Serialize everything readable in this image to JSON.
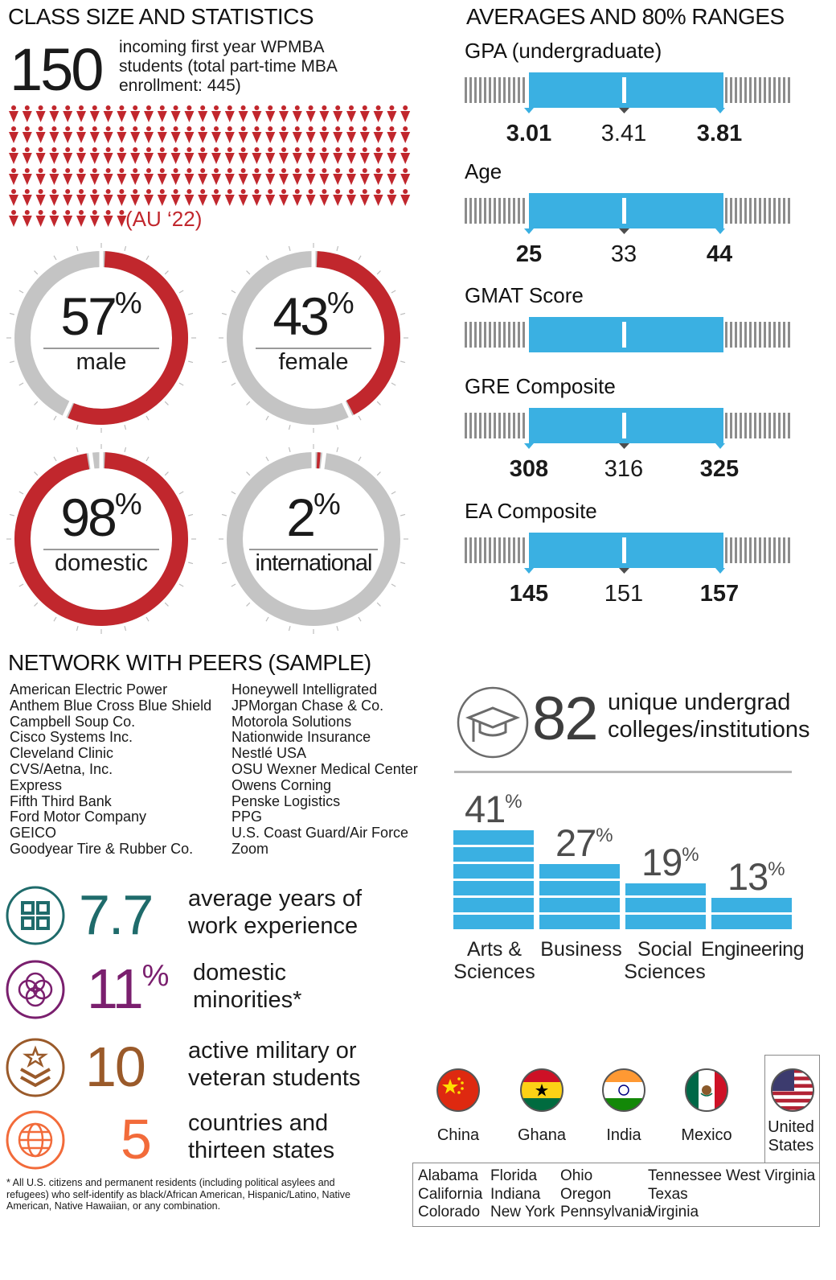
{
  "class_section": {
    "heading": "CLASS SIZE AND STATISTICS",
    "incoming_number": "150",
    "incoming_text": [
      "incoming first year WPMBA",
      "students (total part-time MBA",
      "enrollment: 445)"
    ],
    "au_label": "(AU ‘22)"
  },
  "donuts": [
    {
      "value": "57",
      "pct": "%",
      "label": "male",
      "fraction": 0.57,
      "fill": "red"
    },
    {
      "value": "43",
      "pct": "%",
      "label": "female",
      "fraction": 0.43,
      "fill": "red"
    },
    {
      "value": "98",
      "pct": "%",
      "label": "domestic",
      "fraction": 0.98,
      "fill": "red"
    },
    {
      "value": "2",
      "pct": "%",
      "label": "international",
      "fraction": 0.02,
      "fill": "red"
    }
  ],
  "averages": {
    "heading": "AVERAGES AND 80% RANGES",
    "metrics": [
      {
        "title": "GPA (undergraduate)",
        "low": "3.01",
        "avg": "3.41",
        "high": "3.81"
      },
      {
        "title": "Age",
        "low": "25",
        "avg": "33",
        "high": "44"
      },
      {
        "title": "GMAT Score",
        "low": "",
        "avg": "",
        "high": ""
      },
      {
        "title": "GRE Composite",
        "low": "308",
        "avg": "316",
        "high": "325"
      },
      {
        "title": "EA Composite",
        "low": "145",
        "avg": "151",
        "high": "157"
      }
    ]
  },
  "network": {
    "heading": "NETWORK WITH PEERS (SAMPLE)",
    "col1": [
      "American Electric Power",
      "Anthem Blue Cross Blue Shield",
      "Campbell Soup Co.",
      "Cisco Systems Inc.",
      "Cleveland Clinic",
      "CVS/Aetna, Inc.",
      "Express",
      "Fifth Third Bank",
      "Ford Motor Company",
      "GEICO",
      "Goodyear Tire & Rubber Co."
    ],
    "col2": [
      "Honeywell Intelligrated",
      "JPMorgan Chase & Co.",
      "Motorola Solutions",
      "Nationwide Insurance",
      "Nestlé USA",
      "OSU Wexner Medical Center",
      "Owens Corning",
      "Penske Logistics",
      "PPG",
      "U.S. Coast Guard/Air Force",
      "Zoom"
    ]
  },
  "facts": [
    {
      "icon": "puzzle-icon",
      "number": "7.7",
      "sup": "",
      "desc": [
        "average years of",
        "work experience"
      ],
      "color": "#1f6b6b"
    },
    {
      "icon": "interlocking-circles-icon",
      "number": "11",
      "sup": "%",
      "desc": [
        "domestic",
        "minorities*"
      ],
      "color": "#7a1f6e"
    },
    {
      "icon": "military-badge-icon",
      "number": "10",
      "sup": "",
      "desc": [
        "active military or",
        "veteran students"
      ],
      "color": "#9a5a2a"
    },
    {
      "icon": "globe-icon",
      "number": "5",
      "sup": "",
      "desc": [
        "countries and",
        "thirteen states"
      ],
      "color": "#f26b3a"
    }
  ],
  "footnote": [
    "* All U.S. citizens and permanent residents (including political asylees and",
    "refugees) who self-identify as black/African American, Hispanic/Latino, Native",
    "American, Native Hawaiian, or any combination."
  ],
  "colleges": {
    "number": "82",
    "text": [
      "unique undergrad",
      "colleges/institutions"
    ]
  },
  "chart_data": {
    "type": "bar",
    "categories": [
      "Arts & Sciences",
      "Business",
      "Social Sciences",
      "Engineering"
    ],
    "values": [
      41,
      27,
      19,
      13
    ],
    "value_labels": [
      "41",
      "27",
      "19",
      "13"
    ],
    "unit": "%",
    "color": "#3ab0e2"
  },
  "countries": [
    "China",
    "Ghana",
    "India",
    "Mexico",
    "United States"
  ],
  "states": {
    "col1": [
      "Alabama",
      "California",
      "Colorado"
    ],
    "col2": [
      "Florida",
      "Indiana",
      "New York"
    ],
    "col3": [
      "Ohio",
      "Oregon",
      "Pennsylvania"
    ],
    "col4": [
      "Tennessee",
      "Texas",
      "Virginia"
    ],
    "col5": [
      "West Virginia"
    ]
  },
  "colors": {
    "red": "#c1272d",
    "gray": "#c4c4c4",
    "blue": "#3ab0e2"
  }
}
